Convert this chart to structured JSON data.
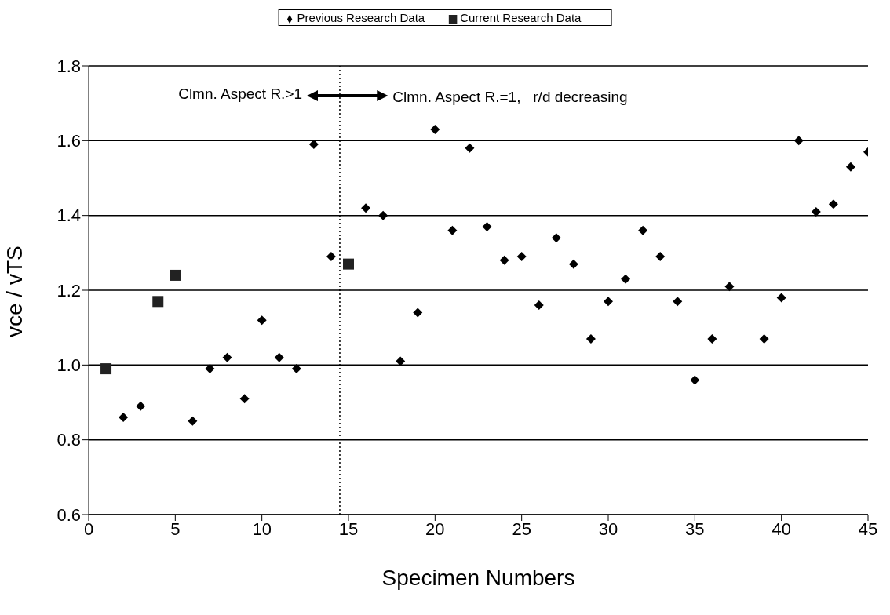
{
  "chart_data": {
    "type": "scatter",
    "xlabel": "Specimen Numbers",
    "ylabel": "vce / vTS",
    "xlim": [
      0,
      45
    ],
    "xticks": [
      0,
      5,
      10,
      15,
      20,
      25,
      30,
      35,
      40,
      45
    ],
    "ylim": [
      0.6,
      1.8
    ],
    "yticks": [
      0.6,
      0.8,
      {
        "value": 1,
        "label": "1.0"
      },
      1.2,
      1.4,
      1.6,
      1.8
    ],
    "grid": "y",
    "legend": "top",
    "series": [
      {
        "name": "Previous Research Data",
        "color": "#000000",
        "marker": "diamond",
        "x": [
          2,
          3,
          6,
          7,
          8,
          9,
          10,
          11,
          12,
          13,
          14,
          16,
          17,
          18,
          19,
          20,
          21,
          22,
          23,
          24,
          25,
          26,
          27,
          28,
          29,
          30,
          31,
          32,
          33,
          34,
          35,
          36,
          37,
          39,
          40,
          41,
          42,
          43,
          44,
          45
        ],
        "values": [
          0.86,
          0.89,
          0.85,
          0.99,
          1.02,
          0.91,
          1.12,
          1.02,
          0.99,
          1.59,
          1.29,
          1.42,
          1.4,
          1.01,
          1.14,
          1.63,
          1.36,
          1.58,
          1.37,
          1.28,
          1.29,
          1.16,
          1.34,
          1.27,
          1.07,
          1.17,
          1.23,
          1.36,
          1.29,
          1.17,
          0.96,
          1.07,
          1.21,
          1.07,
          1.18,
          1.6,
          1.41,
          1.43,
          1.53,
          1.57
        ]
      },
      {
        "name": "Current Research Data",
        "color": "#222222",
        "marker": "square",
        "x": [
          1,
          4,
          5,
          15
        ],
        "values": [
          0.99,
          1.17,
          1.24,
          1.27
        ]
      }
    ],
    "ref_lines": [
      {
        "axis": "x",
        "value": 14.5,
        "line_style": "dotted",
        "color": "#000000"
      }
    ],
    "annotations": [
      "Clmn. Aspect R.>1",
      "Clmn. Aspect R.=1,   r/d decreasing"
    ]
  }
}
